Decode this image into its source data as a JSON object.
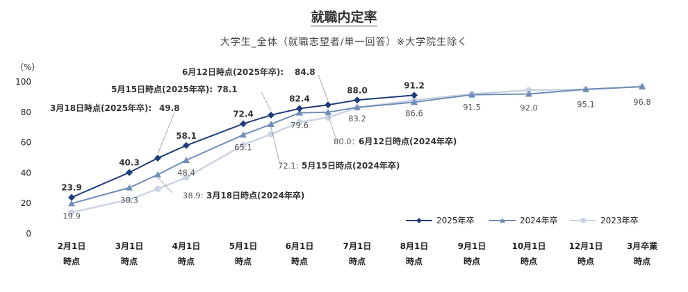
{
  "chart_data": {
    "type": "line",
    "title": "就職内定率",
    "subtitle": "大学生_全体（就職志望者/単一回答）※大学院生除く",
    "ylabel": "（%）",
    "ylim": [
      0,
      100
    ],
    "yticks": [
      0,
      20,
      40,
      60,
      80,
      100
    ],
    "categories": [
      "2月1日時点",
      "3月1日時点",
      "3月18日時点",
      "4月1日時点",
      "5月1日時点",
      "5月15日時点",
      "6月1日時点",
      "6月12日時点",
      "7月1日時点",
      "8月1日時点",
      "9月1日時点",
      "10月1日時点",
      "12月1日時点",
      "3月卒業時点"
    ],
    "x_tick_labels": [
      [
        "2月1日",
        "時点"
      ],
      [
        "3月1日",
        "時点"
      ],
      [
        "4月1日",
        "時点"
      ],
      [
        "5月1日",
        "時点"
      ],
      [
        "6月1日",
        "時点"
      ],
      [
        "7月1日",
        "時点"
      ],
      [
        "8月1日",
        "時点"
      ],
      [
        "9月1日",
        "時点"
      ],
      [
        "10月1日",
        "時点"
      ],
      [
        "12月1日",
        "時点"
      ],
      [
        "3月卒業",
        "時点"
      ]
    ],
    "series": [
      {
        "name": "2025年卒",
        "color": "#1f3d7a",
        "marker": "diamond",
        "values": [
          23.9,
          40.3,
          49.8,
          58.1,
          72.4,
          78.1,
          82.4,
          84.8,
          88.0,
          91.2,
          null,
          null,
          null,
          null
        ]
      },
      {
        "name": "2024年卒",
        "color": "#6f8db8",
        "marker": "triangle",
        "values": [
          19.9,
          30.3,
          38.9,
          48.4,
          65.1,
          72.1,
          79.6,
          80.0,
          83.2,
          86.6,
          91.5,
          92.0,
          95.1,
          96.8
        ]
      },
      {
        "name": "2023年卒",
        "color": "#c9d3e3",
        "marker": "circle",
        "values": [
          14.0,
          22.5,
          29.5,
          37.0,
          58.5,
          65.5,
          73.5,
          76.5,
          83.0,
          88.0,
          92.0,
          94.5,
          95.0,
          97.0
        ]
      }
    ],
    "labels_2025": [
      "23.9",
      "40.3",
      "58.1",
      "72.4",
      "82.4",
      "88.0",
      "91.2"
    ],
    "labels_2024": [
      "19.9",
      "30.3",
      "48.4",
      "65.1",
      "79.6",
      "83.2",
      "86.6",
      "91.5",
      "92.0",
      "95.1",
      "96.8"
    ],
    "callouts": [
      {
        "text": "6月12日時点(2025年卒):",
        "value": "84.8"
      },
      {
        "text": "5月15日時点(2025年卒):",
        "value": "78.1"
      },
      {
        "text": "3月18日時点(2025年卒):",
        "value": "49.8"
      },
      {
        "text": "80.0：",
        "value": "6月12日時点(2024年卒)"
      },
      {
        "text": "72.1:",
        "value": "5月15日時点(2024年卒)"
      },
      {
        "text": "38.9:",
        "value": "3月18日時点(2024年卒)"
      }
    ],
    "legend": "bottom-right"
  }
}
